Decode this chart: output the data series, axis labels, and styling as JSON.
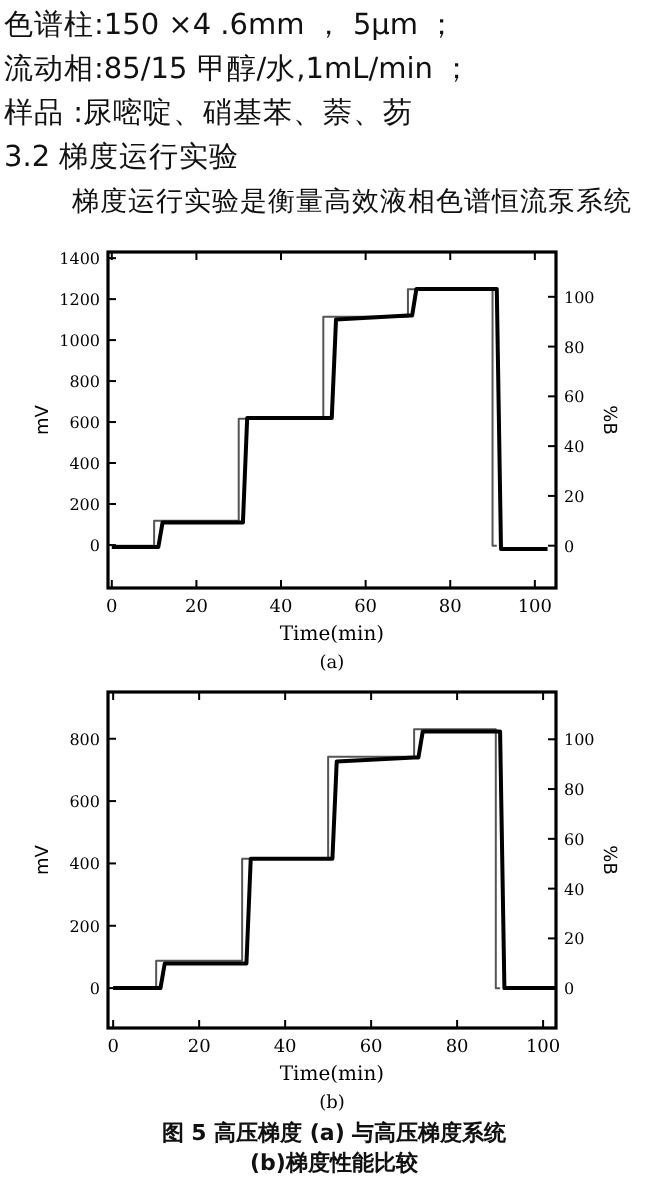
{
  "chart_data": [
    {
      "type": "line",
      "subtitle": "(a)",
      "xlabel": "Time(min)",
      "ylabel": "mV",
      "y2label": "%B",
      "annotations": [
        "色谱柱:150 ×4 .6mm ， 5μm ；",
        "流动相:85/15 甲醇/水,1mL/min ；",
        "样品 :尿嘧啶、硝基苯、萘、芴",
        "3.2 梯度运行实验",
        "梯度运行实验是衡量高效液相色谱恒流泵系统"
      ],
      "xlim": [
        -0.9,
        105
      ],
      "xticks": [
        0,
        20,
        40,
        60,
        80,
        100
      ],
      "ylim": [
        -210,
        1430
      ],
      "yticks": [
        0,
        200,
        400,
        600,
        800,
        1000,
        1200,
        1400
      ],
      "y2lim": [
        -17,
        118
      ],
      "y2ticks": [
        0,
        20,
        40,
        60,
        80,
        100
      ],
      "grid": false,
      "marker": "none",
      "series": [
        {
          "axis": "y2",
          "color": "#555555",
          "line_style": "solid",
          "x": [
            0,
            10,
            10,
            30,
            30,
            50,
            50,
            70,
            70,
            90,
            90,
            91
          ],
          "values": [
            0,
            0,
            10,
            10,
            51,
            51,
            92,
            92,
            103,
            103,
            0,
            0
          ]
        },
        {
          "axis": "y",
          "color": "#000000",
          "line_style": "solid",
          "x": [
            0,
            11,
            12,
            31,
            32,
            52,
            53,
            70,
            71,
            72,
            91,
            92,
            103
          ],
          "values": [
            -10,
            -10,
            110,
            110,
            620,
            620,
            1100,
            1120,
            1120,
            1250,
            1250,
            -20,
            -20
          ]
        }
      ]
    },
    {
      "type": "line",
      "subtitle": "(b)",
      "xlabel": "Time(min)",
      "ylabel": "mV",
      "y2label": "%B",
      "annotations": [
        "图 5 高压梯度 (a) 与高压梯度系统",
        "(b)梯度性能比较"
      ],
      "xlim": [
        -1.2,
        103
      ],
      "xticks": [
        0,
        20,
        40,
        60,
        80,
        100
      ],
      "ylim": [
        -128,
        950
      ],
      "yticks": [
        0,
        200,
        400,
        600,
        800
      ],
      "y2lim": [
        -16,
        119
      ],
      "y2ticks": [
        0,
        20,
        40,
        60,
        80,
        100
      ],
      "grid": false,
      "marker": "none",
      "series": [
        {
          "axis": "y2",
          "color": "#555555",
          "line_style": "solid",
          "x": [
            0,
            10,
            10,
            30,
            30,
            50,
            50,
            70,
            70,
            89,
            89,
            90
          ],
          "values": [
            0,
            0,
            11,
            11,
            52,
            52,
            93,
            93,
            104,
            104,
            0,
            0
          ]
        },
        {
          "axis": "y",
          "color": "#000000",
          "line_style": "solid",
          "x": [
            0,
            11,
            12,
            31,
            32,
            51,
            52,
            70,
            71,
            72,
            90,
            91,
            103
          ],
          "values": [
            0,
            0,
            79,
            79,
            415,
            415,
            727,
            740,
            740,
            823,
            823,
            0,
            0
          ]
        }
      ]
    }
  ]
}
